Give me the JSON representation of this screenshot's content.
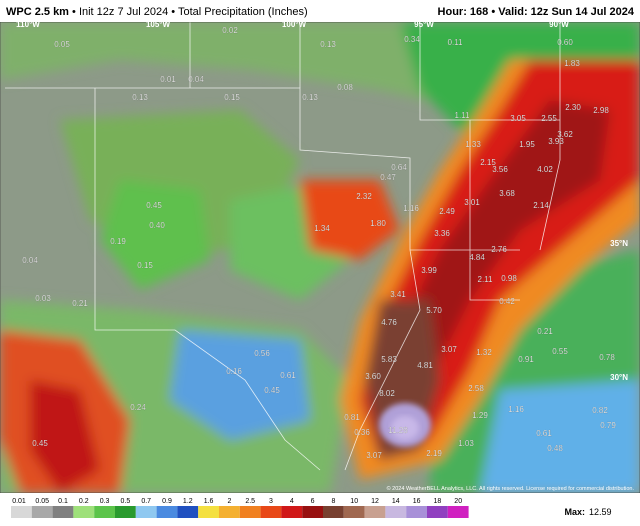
{
  "header": {
    "model": "WPC 2.5 km",
    "init": "Init 12z 7 Jul 2024",
    "field": "Total Precipitation (Inches)",
    "hour": "Hour: 168",
    "valid": "Valid: 12z Sun 14 Jul 2024"
  },
  "grid_labels": [
    "110°W",
    "105°W",
    "100°W",
    "95°W",
    "90°W",
    "35°N",
    "30°N"
  ],
  "map_labels": [
    "0.05",
    "0.02",
    "0.01",
    "0.04",
    "0.13",
    "0.15",
    "0.13",
    "0.08",
    "0.34",
    "0.11",
    "0.13",
    "0.60",
    "1.83",
    "1.11",
    "3.05",
    "2.55",
    "2.30",
    "2.98",
    "3.62",
    "3.93",
    "1.33",
    "1.95",
    "2.15",
    "3.56",
    "4.02",
    "0.64",
    "0.47",
    "2.32",
    "1.16",
    "3.01",
    "3.68",
    "2.49",
    "2.14",
    "1.34",
    "1.80",
    "3.36",
    "4.84",
    "2.76",
    "3.99",
    "3.41",
    "2.11",
    "0.98",
    "4.76",
    "5.70",
    "5.83",
    "3.07",
    "1.32",
    "4.81",
    "3.60",
    "2.58",
    "8.02",
    "11.28",
    "2.19",
    "1.29",
    "1.16",
    "0.82",
    "0.79",
    "0.61",
    "0.48",
    "3.07",
    "0.56",
    "0.61",
    "0.45",
    "0.24",
    "0.45",
    "0.16",
    "0.15",
    "0.19",
    "0.40",
    "0.45",
    "0.03",
    "0.04",
    "0.21",
    "0.55",
    "0.78",
    "0.91",
    "0.21",
    "0.42",
    "0.36",
    "0.81",
    "1.03"
  ],
  "copyright": "© 2024 WeatherBELL Analytics, LLC. All rights reserved. License required for commercial distribution.",
  "colorbar": {
    "labels": [
      "0.01",
      "0.05",
      "0.1",
      "0.2",
      "0.3",
      "0.5",
      "0.7",
      "0.9",
      "1.2",
      "1.6",
      "2",
      "2.5",
      "3",
      "4",
      "6",
      "8",
      "10",
      "12",
      "14",
      "16",
      "18",
      "20"
    ],
    "colors": [
      "#d8d8d8",
      "#a8a8a8",
      "#808080",
      "#9ee07a",
      "#5cc44a",
      "#2a9a2e",
      "#8fc8f0",
      "#4a8ae0",
      "#2050c0",
      "#f4e040",
      "#f4b030",
      "#f08020",
      "#e84818",
      "#d01818",
      "#981010",
      "#784030",
      "#a06850",
      "#c8a090",
      "#c8b8e0",
      "#a890d8",
      "#9040c0",
      "#d020c0"
    ]
  },
  "max": {
    "label": "Max:",
    "value": "12.59"
  }
}
